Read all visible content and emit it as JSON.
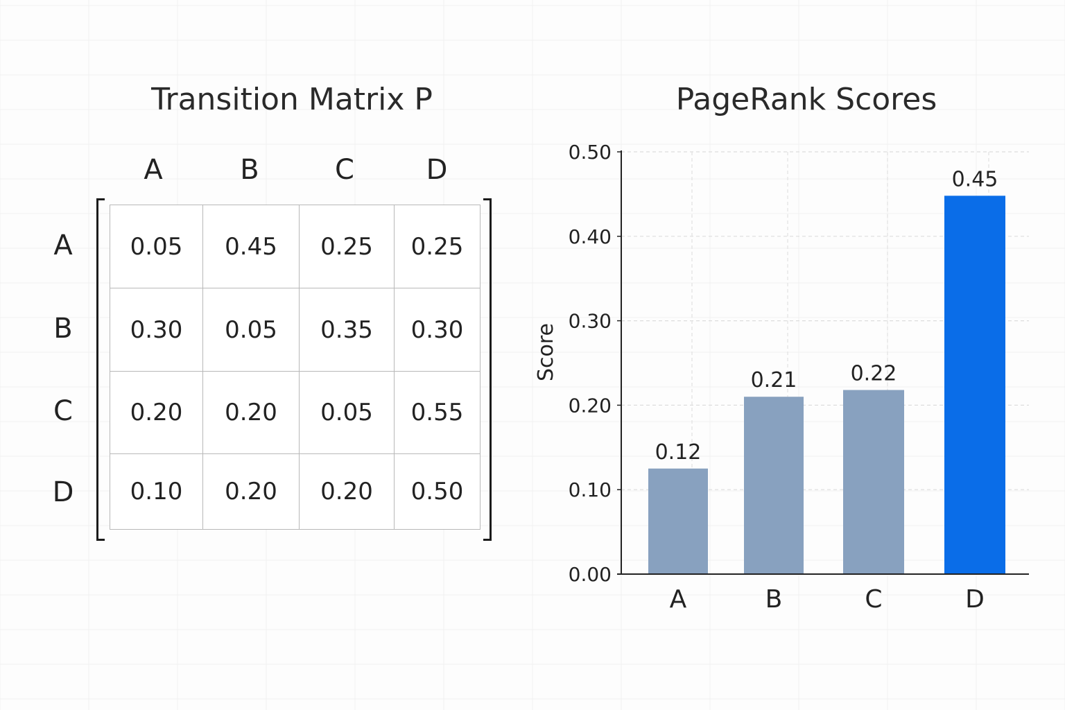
{
  "matrix": {
    "title": "Transition Matrix P",
    "columns": [
      "A",
      "B",
      "C",
      "D"
    ],
    "rows": [
      {
        "label": "A",
        "values": [
          "0.05",
          "0.45",
          "0.25",
          "0.25"
        ]
      },
      {
        "label": "B",
        "values": [
          "0.30",
          "0.05",
          "0.35",
          "0.30"
        ]
      },
      {
        "label": "C",
        "values": [
          "0.20",
          "0.20",
          "0.05",
          "0.55"
        ]
      },
      {
        "label": "D",
        "values": [
          "0.10",
          "0.20",
          "0.20",
          "0.50"
        ]
      }
    ]
  },
  "chart_data": {
    "type": "bar",
    "title": "PageRank Scores",
    "xlabel": "",
    "ylabel": "Score",
    "categories": [
      "A",
      "B",
      "C",
      "D"
    ],
    "values": [
      0.125,
      0.21,
      0.218,
      0.448
    ],
    "data_labels": [
      "0.12",
      "0.21",
      "0.22",
      "0.45"
    ],
    "ylim": [
      0,
      0.5
    ],
    "yticks": [
      "0.00",
      "0.10",
      "0.20",
      "0.30",
      "0.40",
      "0.50"
    ],
    "grid": true,
    "colors": [
      "#88a1bf",
      "#88a1bf",
      "#88a1bf",
      "#0a6de8"
    ]
  }
}
